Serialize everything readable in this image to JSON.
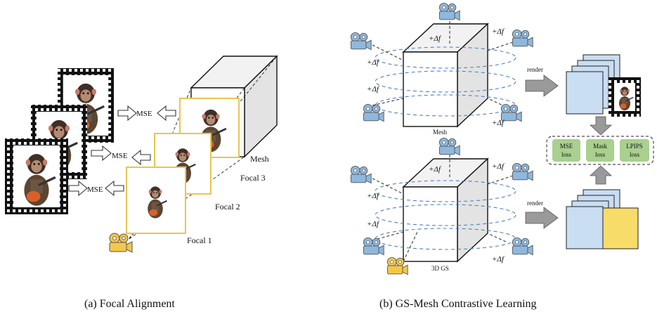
{
  "panel_a": {
    "caption": "(a) Focal Alignment",
    "mesh_label": "Mesh",
    "mse_labels": [
      "MSE",
      "MSE",
      "MSE"
    ],
    "focal_labels": [
      "Focal 3",
      "Focal 2",
      "Focal  1"
    ]
  },
  "panel_b": {
    "caption": "(b) GS-Mesh Contrastive Learning",
    "mesh_label": "Mesh",
    "gs_label": "3D GS",
    "delta_label": "+Δf",
    "render_label": "render",
    "losses": [
      {
        "line1": "MSE",
        "line2": "loss"
      },
      {
        "line1": "Mask",
        "line2": "loss"
      },
      {
        "line1": "LPIPS",
        "line2": "loss"
      }
    ]
  },
  "colors": {
    "camera": "#8fb8de",
    "camera_highlight": "#f3c84a",
    "frame_gold": "#e8c552",
    "cube_front": "#ffffff",
    "cube_side": "#e3e3e3",
    "cube_top": "#f2f2f2",
    "render_blue": "#c9ddf3",
    "render_yellow": "#f8dc6a",
    "loss_green": "#a9d08e",
    "orbit_blue": "#4f7fc4",
    "arrow_grey": "#9a9a9a"
  }
}
